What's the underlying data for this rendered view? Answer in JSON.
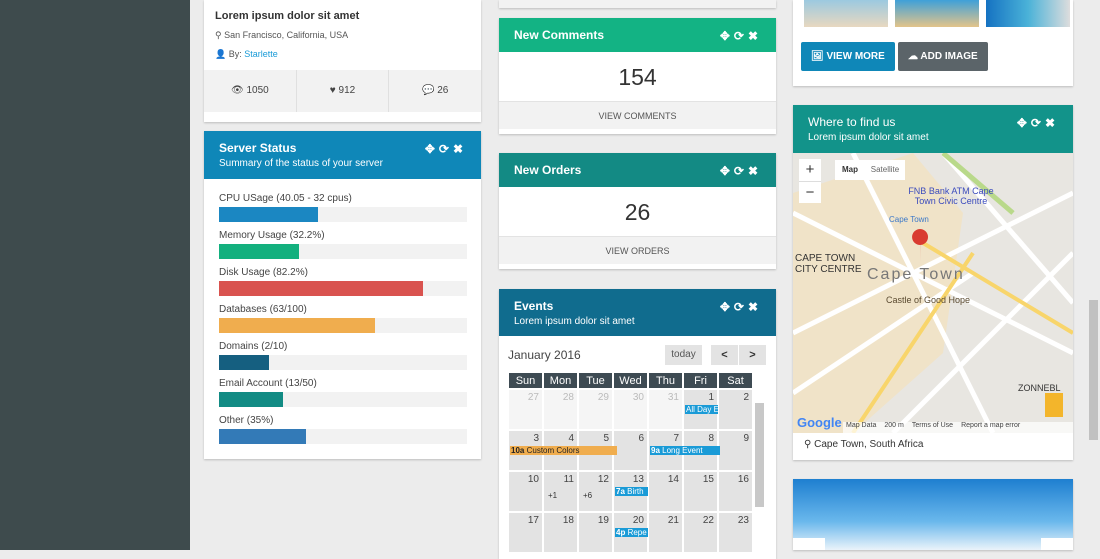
{
  "profile_card": {
    "title": "Lorem ipsum dolor sit amet",
    "location": "San Francisco, California, USA",
    "by_label": "By:",
    "author": "Starlette",
    "stats": {
      "views": "1050",
      "likes": "912",
      "comments": "26"
    }
  },
  "server_status": {
    "title": "Server Status",
    "subtitle": "Summary of the status of your server",
    "color": "#0f87b8",
    "bars": [
      {
        "label": "CPU USage (40.05 - 32 cpus)",
        "percent": 40,
        "color": "#1b87c2"
      },
      {
        "label": "Memory Usage (32.2%)",
        "percent": 32.2,
        "color": "#13b07e"
      },
      {
        "label": "Disk Usage (82.2%)",
        "percent": 82.2,
        "color": "#d9534f"
      },
      {
        "label": "Databases (63/100)",
        "percent": 63,
        "color": "#f0ad4e"
      },
      {
        "label": "Domains (2/10)",
        "percent": 20,
        "color": "#155f80"
      },
      {
        "label": "Email Account (13/50)",
        "percent": 26,
        "color": "#128b84"
      },
      {
        "label": "Other (35%)",
        "percent": 35,
        "color": "#337ab7"
      }
    ]
  },
  "new_comments": {
    "title": "New Comments",
    "count": "154",
    "action": "VIEW COMMENTS",
    "color": "#13b384"
  },
  "new_orders": {
    "title": "New Orders",
    "count": "26",
    "action": "VIEW ORDERS",
    "color": "#138a84"
  },
  "events": {
    "title": "Events",
    "subtitle": "Lorem ipsum dolor sit amet",
    "color": "#106c8e",
    "month": "January 2016",
    "today": "today",
    "prev": "<",
    "next": ">",
    "days": [
      "Sun",
      "Mon",
      "Tue",
      "Wed",
      "Thu",
      "Fri",
      "Sat"
    ],
    "weeks": [
      [
        "27",
        "28",
        "29",
        "30",
        "31",
        "1",
        "2"
      ],
      [
        "3",
        "4",
        "5",
        "6",
        "7",
        "8",
        "9"
      ],
      [
        "10",
        "11",
        "12",
        "13",
        "14",
        "15",
        "16"
      ],
      [
        "17",
        "18",
        "19",
        "20",
        "21",
        "22",
        "23"
      ]
    ],
    "events": [
      {
        "time": "",
        "title": "All Day E"
      },
      {
        "time": "10a",
        "title": "Custom Colors"
      },
      {
        "time": "9a",
        "title": "Long Event"
      },
      {
        "time": "7a",
        "title": "Birth"
      },
      {
        "time": "4p",
        "title": "Repe"
      }
    ],
    "more": [
      "+1",
      "+6"
    ]
  },
  "gallery": {
    "view_more": "VIEW MORE",
    "add_image": "ADD IMAGE"
  },
  "map_panel": {
    "title": "Where to find us",
    "subtitle": "Lorem ipsum dolor sit amet",
    "color": "#12938a",
    "map_tab": "Map",
    "satellite_tab": "Satellite",
    "zoom_in": "+",
    "zoom_out": "−",
    "labels": {
      "bank": "FNB Bank ATM Cape Town Civic Centre",
      "centre": "CAPE TOWN CITY CENTRE",
      "city": "Cape Town",
      "castle": "Castle of Good Hope",
      "zonnebloem": "ZONNEBL",
      "cape_town_small": "Cape Town"
    },
    "attribution": {
      "google": "Google",
      "map_data": "Map Data",
      "scale": "200 m",
      "terms": "Terms of Use",
      "report": "Report a map error"
    },
    "address": "Cape Town, South Africa"
  }
}
